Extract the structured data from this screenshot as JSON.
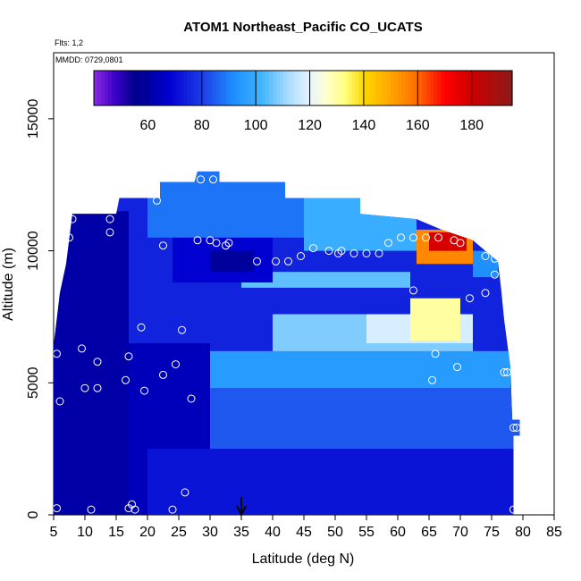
{
  "chart_data": {
    "type": "heatmap",
    "title": "ATOM1 Northeast_Pacific CO_UCATS",
    "annotations": {
      "flights": "Flts: 1,2",
      "dates": "MMDD: 0729,0801"
    },
    "xlabel": "Latitude (deg N)",
    "ylabel": "Altitude (m)",
    "xlim": [
      5,
      85
    ],
    "ylim": [
      0,
      17500
    ],
    "x_ticks": [
      "5",
      "10",
      "15",
      "20",
      "25",
      "30",
      "35",
      "40",
      "45",
      "50",
      "55",
      "60",
      "65",
      "70",
      "75",
      "80",
      "85"
    ],
    "y_ticks": [
      "0",
      "5000",
      "10000",
      "15000"
    ],
    "colorbar": {
      "range": [
        40,
        195
      ],
      "tick_labels": [
        "60",
        "80",
        "100",
        "120",
        "140",
        "160",
        "180"
      ],
      "stops": [
        {
          "v": 40,
          "c": "#8a2be2"
        },
        {
          "v": 48,
          "c": "#3a00c8"
        },
        {
          "v": 55,
          "c": "#00008b"
        },
        {
          "v": 68,
          "c": "#0000d0"
        },
        {
          "v": 80,
          "c": "#1e3ce6"
        },
        {
          "v": 92,
          "c": "#1e90ff"
        },
        {
          "v": 102,
          "c": "#40b4ff"
        },
        {
          "v": 112,
          "c": "#aadcff"
        },
        {
          "v": 120,
          "c": "#e6f4ff"
        },
        {
          "v": 126,
          "c": "#ffffcc"
        },
        {
          "v": 133,
          "c": "#ffff80"
        },
        {
          "v": 140,
          "c": "#ffd700"
        },
        {
          "v": 150,
          "c": "#ffa500"
        },
        {
          "v": 160,
          "c": "#ff6a00"
        },
        {
          "v": 170,
          "c": "#ff0000"
        },
        {
          "v": 180,
          "c": "#cc0000"
        },
        {
          "v": 195,
          "c": "#8b1a1a"
        }
      ]
    },
    "curtain_top": [
      {
        "lat": 5.0,
        "alt": 6400
      },
      {
        "lat": 6.0,
        "alt": 8400
      },
      {
        "lat": 7.0,
        "alt": 9500
      },
      {
        "lat": 8.0,
        "alt": 11400
      },
      {
        "lat": 15.0,
        "alt": 11400
      },
      {
        "lat": 15.5,
        "alt": 12000
      },
      {
        "lat": 22.0,
        "alt": 12000
      },
      {
        "lat": 22.0,
        "alt": 12600
      },
      {
        "lat": 27.5,
        "alt": 12600
      },
      {
        "lat": 28.0,
        "alt": 13000
      },
      {
        "lat": 31.5,
        "alt": 13000
      },
      {
        "lat": 31.5,
        "alt": 12600
      },
      {
        "lat": 42.0,
        "alt": 12600
      },
      {
        "lat": 42.0,
        "alt": 12000
      },
      {
        "lat": 54.0,
        "alt": 12000
      },
      {
        "lat": 54.0,
        "alt": 11400
      },
      {
        "lat": 63.0,
        "alt": 11200
      },
      {
        "lat": 67.0,
        "alt": 10800
      },
      {
        "lat": 72.0,
        "alt": 10400
      },
      {
        "lat": 74.0,
        "alt": 10000
      },
      {
        "lat": 76.0,
        "alt": 9600
      },
      {
        "lat": 76.5,
        "alt": 8600
      },
      {
        "lat": 77.0,
        "alt": 7400
      },
      {
        "lat": 78.0,
        "alt": 5600
      },
      {
        "lat": 78.3,
        "alt": 3600
      },
      {
        "lat": 79.5,
        "alt": 3600
      },
      {
        "lat": 79.5,
        "alt": 3000
      },
      {
        "lat": 78.5,
        "alt": 3000
      },
      {
        "lat": 78.5,
        "alt": 0
      },
      {
        "lat": 5.0,
        "alt": 0
      }
    ],
    "field_regions": [
      {
        "lat0": 5,
        "lat1": 80,
        "alt0": 0,
        "alt1": 13500,
        "value": 75
      },
      {
        "lat0": 5,
        "lat1": 17,
        "alt0": 0,
        "alt1": 11500,
        "value": 60
      },
      {
        "lat0": 17,
        "lat1": 30,
        "alt0": 0,
        "alt1": 6500,
        "value": 64
      },
      {
        "lat0": 20,
        "lat1": 80,
        "alt0": 0,
        "alt1": 2500,
        "value": 72
      },
      {
        "lat0": 30,
        "lat1": 80,
        "alt0": 2500,
        "alt1": 4800,
        "value": 84
      },
      {
        "lat0": 30,
        "lat1": 78,
        "alt0": 4800,
        "alt1": 6200,
        "value": 95
      },
      {
        "lat0": 40,
        "lat1": 72,
        "alt0": 6200,
        "alt1": 7600,
        "value": 108
      },
      {
        "lat0": 55,
        "lat1": 72,
        "alt0": 6500,
        "alt1": 7600,
        "value": 118
      },
      {
        "lat0": 62,
        "lat1": 70,
        "alt0": 6600,
        "alt1": 8200,
        "value": 130
      },
      {
        "lat0": 35,
        "lat1": 62,
        "alt0": 8600,
        "alt1": 9200,
        "value": 105
      },
      {
        "lat0": 24,
        "lat1": 40,
        "alt0": 8800,
        "alt1": 10500,
        "value": 68
      },
      {
        "lat0": 30,
        "lat1": 37,
        "alt0": 9200,
        "alt1": 10000,
        "value": 58
      },
      {
        "lat0": 20,
        "lat1": 45,
        "alt0": 10500,
        "alt1": 13100,
        "value": 88
      },
      {
        "lat0": 45,
        "lat1": 63,
        "alt0": 10000,
        "alt1": 12000,
        "value": 100
      },
      {
        "lat0": 63,
        "lat1": 72,
        "alt0": 9500,
        "alt1": 10800,
        "value": 155
      },
      {
        "lat0": 65,
        "lat1": 71,
        "alt0": 10000,
        "alt1": 10700,
        "value": 178
      },
      {
        "lat0": 72,
        "lat1": 76,
        "alt0": 9000,
        "alt1": 10000,
        "value": 92
      }
    ],
    "measurements": [
      {
        "lat": 5.5,
        "alt": 250
      },
      {
        "lat": 11.0,
        "alt": 200
      },
      {
        "lat": 17.0,
        "alt": 250
      },
      {
        "lat": 17.5,
        "alt": 400
      },
      {
        "lat": 18.0,
        "alt": 200
      },
      {
        "lat": 24.0,
        "alt": 200
      },
      {
        "lat": 26.0,
        "alt": 850
      },
      {
        "lat": 6.0,
        "alt": 4300
      },
      {
        "lat": 12.0,
        "alt": 4800
      },
      {
        "lat": 10.0,
        "alt": 4800
      },
      {
        "lat": 16.5,
        "alt": 5100
      },
      {
        "lat": 19.5,
        "alt": 4700
      },
      {
        "lat": 22.5,
        "alt": 5300
      },
      {
        "lat": 24.5,
        "alt": 5700
      },
      {
        "lat": 27.0,
        "alt": 4400
      },
      {
        "lat": 5.5,
        "alt": 6100
      },
      {
        "lat": 9.5,
        "alt": 6300
      },
      {
        "lat": 12.0,
        "alt": 5800
      },
      {
        "lat": 17.0,
        "alt": 6000
      },
      {
        "lat": 19.0,
        "alt": 7100
      },
      {
        "lat": 25.5,
        "alt": 7000
      },
      {
        "lat": 7.5,
        "alt": 10500
      },
      {
        "lat": 8.0,
        "alt": 11200
      },
      {
        "lat": 14.0,
        "alt": 10700
      },
      {
        "lat": 14.0,
        "alt": 11200
      },
      {
        "lat": 21.5,
        "alt": 11900
      },
      {
        "lat": 22.5,
        "alt": 10200
      },
      {
        "lat": 28.0,
        "alt": 10400
      },
      {
        "lat": 30.0,
        "alt": 10400
      },
      {
        "lat": 31.0,
        "alt": 10300
      },
      {
        "lat": 32.5,
        "alt": 10200
      },
      {
        "lat": 33.0,
        "alt": 10300
      },
      {
        "lat": 28.5,
        "alt": 12700
      },
      {
        "lat": 30.5,
        "alt": 12700
      },
      {
        "lat": 37.5,
        "alt": 9600
      },
      {
        "lat": 40.5,
        "alt": 9600
      },
      {
        "lat": 42.5,
        "alt": 9600
      },
      {
        "lat": 44.5,
        "alt": 9800
      },
      {
        "lat": 46.5,
        "alt": 10100
      },
      {
        "lat": 49.0,
        "alt": 10000
      },
      {
        "lat": 50.5,
        "alt": 9900
      },
      {
        "lat": 51.0,
        "alt": 10000
      },
      {
        "lat": 53.0,
        "alt": 9900
      },
      {
        "lat": 55.0,
        "alt": 9900
      },
      {
        "lat": 57.0,
        "alt": 9900
      },
      {
        "lat": 58.5,
        "alt": 10300
      },
      {
        "lat": 60.5,
        "alt": 10500
      },
      {
        "lat": 62.5,
        "alt": 10500
      },
      {
        "lat": 64.5,
        "alt": 10500
      },
      {
        "lat": 66.5,
        "alt": 10500
      },
      {
        "lat": 69.0,
        "alt": 10400
      },
      {
        "lat": 70.0,
        "alt": 10300
      },
      {
        "lat": 74.0,
        "alt": 9800
      },
      {
        "lat": 75.5,
        "alt": 9700
      },
      {
        "lat": 75.5,
        "alt": 9100
      },
      {
        "lat": 62.5,
        "alt": 8500
      },
      {
        "lat": 71.5,
        "alt": 8200
      },
      {
        "lat": 74.0,
        "alt": 8400
      },
      {
        "lat": 66.0,
        "alt": 6100
      },
      {
        "lat": 65.5,
        "alt": 5100
      },
      {
        "lat": 69.5,
        "alt": 5600
      },
      {
        "lat": 77.0,
        "alt": 5400
      },
      {
        "lat": 77.5,
        "alt": 5400
      },
      {
        "lat": 78.5,
        "alt": 3300
      },
      {
        "lat": 79.0,
        "alt": 3300
      },
      {
        "lat": 78.5,
        "alt": 200
      }
    ],
    "marker_latitude": 35
  }
}
